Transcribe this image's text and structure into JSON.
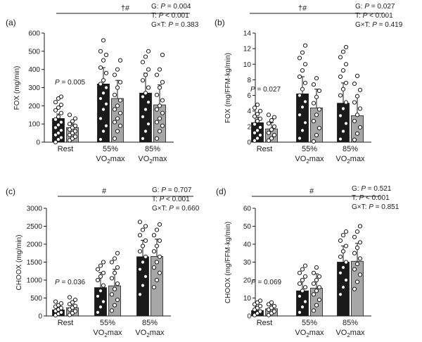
{
  "colors": {
    "bar_dark": "#1a1a1a",
    "bar_light": "#a6a6a6",
    "axis": "#1a1a1a",
    "point_fill": "#ffffff",
    "point_stroke": "#1a1a1a"
  },
  "chart_data": [
    {
      "panel_label": "(a)",
      "type": "bar",
      "ylabel": "FOX (mg/min)",
      "ylim": [
        0,
        600
      ],
      "yticks": [
        "0",
        "100",
        "200",
        "300",
        "400",
        "500",
        "600"
      ],
      "categories": [
        "Rest",
        "55%",
        "85%"
      ],
      "category_sublabels": [
        "",
        "VO2max",
        "VO2max"
      ],
      "series": [
        {
          "values": [
            130,
            320,
            270
          ]
        },
        {
          "values": [
            80,
            240,
            205
          ]
        }
      ],
      "errors": [
        [
          25,
          90,
          110
        ],
        [
          20,
          100,
          110
        ]
      ],
      "points": [
        [
          [
            0,
            15,
            25,
            40,
            50,
            65,
            80,
            95,
            110,
            125,
            140,
            160,
            175,
            190,
            205,
            220,
            240,
            250
          ],
          [
            10,
            20,
            30,
            40,
            50,
            60,
            70,
            80,
            90,
            100,
            115,
            130,
            150
          ]
        ],
        [
          [
            15,
            60,
            90,
            130,
            180,
            210,
            240,
            270,
            300,
            320,
            340,
            380,
            410,
            450,
            480,
            500,
            560
          ],
          [
            20,
            60,
            90,
            110,
            130,
            160,
            180,
            200,
            230,
            260,
            300,
            330,
            370,
            400,
            450
          ]
        ],
        [
          [
            20,
            60,
            100,
            140,
            180,
            220,
            250,
            270,
            300,
            340,
            370,
            400,
            440,
            470,
            500
          ],
          [
            20,
            60,
            90,
            110,
            130,
            160,
            180,
            200,
            230,
            260,
            300,
            330,
            370,
            400,
            480
          ]
        ]
      ],
      "group_stat": "P = 0.005",
      "sig_marker": "†#",
      "stats": [
        "G: P = 0.004",
        "T: P < 0.001",
        "G×T: P = 0.383"
      ]
    },
    {
      "panel_label": "(b)",
      "type": "bar",
      "ylabel": "FOX (mg/FFM·kg/min)",
      "ylim": [
        0,
        14
      ],
      "yticks": [
        "0",
        "2",
        "4",
        "6",
        "8",
        "10",
        "12",
        "14"
      ],
      "categories": [
        "Rest",
        "55%",
        "85%"
      ],
      "category_sublabels": [
        "",
        "VO2max",
        "VO2max"
      ],
      "series": [
        {
          "values": [
            2.5,
            6.2,
            5.0
          ]
        },
        {
          "values": [
            1.7,
            4.4,
            3.4
          ]
        }
      ],
      "errors": [
        [
          0.7,
          2.2,
          2.6
        ],
        [
          0.8,
          2.4,
          2.5
        ]
      ],
      "points": [
        [
          [
            0.2,
            0.5,
            0.9,
            1.2,
            1.5,
            1.9,
            2.3,
            2.7,
            3.0,
            3.3,
            3.6,
            4.0,
            4.4,
            4.8
          ],
          [
            0.2,
            0.5,
            0.9,
            1.2,
            1.6,
            2.0,
            2.4,
            2.8,
            3.2,
            3.5
          ]
        ],
        [
          [
            0.5,
            1.5,
            2.5,
            3.5,
            4.5,
            5.2,
            6.0,
            6.8,
            7.6,
            8.4,
            9.2,
            10.0,
            10.8,
            11.5,
            12.4
          ],
          [
            0.1,
            0.9,
            1.8,
            2.7,
            3.5,
            4.2,
            5.0,
            5.8,
            6.6,
            7.4,
            8.2
          ]
        ],
        [
          [
            0.4,
            1.4,
            2.4,
            3.4,
            4.3,
            5.1,
            6.0,
            6.8,
            7.6,
            8.4,
            9.2,
            10.0,
            10.9,
            11.6,
            12.2
          ],
          [
            0.3,
            1.1,
            1.9,
            2.7,
            3.5,
            4.3,
            5.1,
            5.9,
            6.7,
            7.5,
            8.5
          ]
        ]
      ],
      "group_stat": "P = 0.027",
      "sig_marker": "†#",
      "stats": [
        "G: P = 0.027",
        "T: P < 0.001",
        "G×T: P = 0.419"
      ]
    },
    {
      "panel_label": "(c)",
      "type": "bar",
      "ylabel": "CHOOX (mg/min)",
      "ylim": [
        0,
        3000
      ],
      "yticks": [
        "0",
        "500",
        "1000",
        "1500",
        "2000",
        "2500",
        "3000"
      ],
      "categories": [
        "Rest",
        "55%",
        "85%"
      ],
      "category_sublabels": [
        "",
        "VO2max",
        "VO2max"
      ],
      "series": [
        {
          "values": [
            170,
            790,
            1650
          ]
        },
        {
          "values": [
            230,
            840,
            1660
          ]
        }
      ],
      "errors": [
        [
          130,
          420,
          460
        ],
        [
          140,
          460,
          480
        ]
      ],
      "points": [
        [
          [
            20,
            60,
            100,
            140,
            180,
            220,
            260,
            300,
            350,
            400
          ],
          [
            30,
            80,
            130,
            180,
            230,
            280,
            330,
            380,
            450,
            520
          ]
        ],
        [
          [
            100,
            250,
            400,
            550,
            700,
            850,
            1000,
            1100,
            1200,
            1300,
            1400,
            1500
          ],
          [
            150,
            300,
            450,
            600,
            750,
            900,
            1050,
            1200,
            1350,
            1500,
            1600,
            1750
          ]
        ],
        [
          [
            600,
            850,
            1100,
            1300,
            1500,
            1650,
            1800,
            1950,
            2100,
            2250,
            2400,
            2500,
            2620
          ],
          [
            800,
            1000,
            1200,
            1350,
            1500,
            1650,
            1800,
            1950,
            2100,
            2250,
            2400,
            2550
          ]
        ]
      ],
      "group_stat": "P = 0.036",
      "sig_marker": "#",
      "stats": [
        "G: P = 0.707",
        "T: P < 0.001",
        "G×T: P = 0.660"
      ]
    },
    {
      "panel_label": "(d)",
      "type": "bar",
      "ylabel": "CHOOX (mg/FFM·kg/min)",
      "ylim": [
        0,
        60
      ],
      "yticks": [
        "0",
        "10",
        "20",
        "30",
        "40",
        "50",
        "60"
      ],
      "categories": [
        "Rest",
        "55%",
        "85%"
      ],
      "category_sublabels": [
        "",
        "VO2max",
        "VO2max"
      ],
      "series": [
        {
          "values": [
            3.0,
            14.0,
            30.0
          ]
        },
        {
          "values": [
            4.0,
            15.5,
            30.5
          ]
        }
      ],
      "errors": [
        [
          2.5,
          6.5,
          9.0
        ],
        [
          3.0,
          8.0,
          10.0
        ]
      ],
      "points": [
        [
          [
            0.5,
            1.5,
            2.5,
            3.5,
            4.5,
            5.5,
            6.5,
            7.5,
            8.5
          ],
          [
            0.5,
            1.5,
            2.5,
            3.5,
            4.5,
            5.5,
            6.5,
            7.5
          ]
        ],
        [
          [
            2,
            5,
            8,
            11,
            14,
            16,
            18,
            20,
            22,
            24,
            26,
            28
          ],
          [
            3,
            6,
            9,
            12,
            14,
            16,
            18,
            20,
            22,
            24,
            27
          ]
        ],
        [
          [
            12,
            16,
            20,
            24,
            27,
            30,
            33,
            36,
            39,
            42,
            45,
            47
          ],
          [
            15,
            19,
            23,
            26,
            29,
            32,
            35,
            38,
            41,
            44,
            47,
            50
          ]
        ]
      ],
      "group_stat": "P = 0.069",
      "sig_marker": "#",
      "stats": [
        "G: P = 0.521",
        "T: P < 0.001",
        "G×T: P = 0.851"
      ]
    }
  ]
}
